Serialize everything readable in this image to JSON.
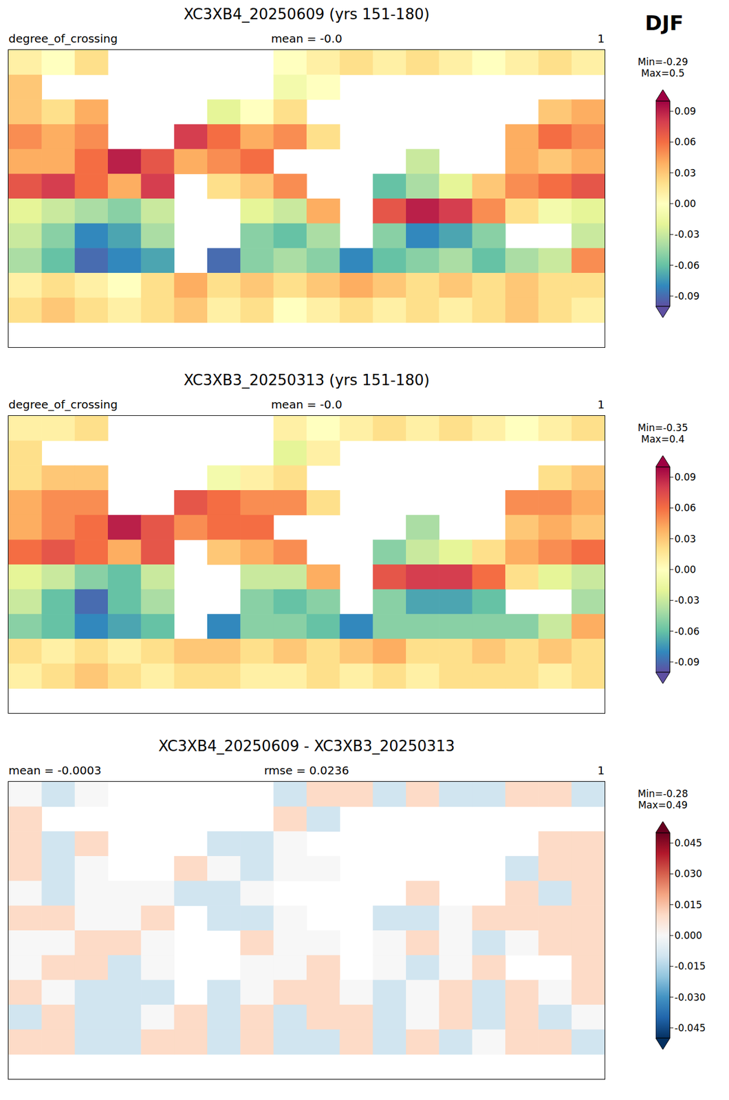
{
  "figure_label": "DJF",
  "chart_data": [
    {
      "type": "heatmap",
      "title": "XC3XB4_20250609 (yrs 151-180)",
      "subtitle_left": "degree_of_crossing",
      "subtitle_center": "mean = -0.0",
      "subtitle_right": "1",
      "xlim": [
        -180,
        180
      ],
      "ylim": [
        -90,
        90
      ],
      "xticks": [],
      "yticks": [],
      "tick_labels": false,
      "color": "Spectral_r",
      "lons": [
        -170,
        -150,
        -130,
        -110,
        -90,
        -70,
        -50,
        -30,
        -10,
        10,
        30,
        50,
        70,
        90,
        110,
        130,
        150,
        170
      ],
      "lats": [
        82.5,
        67.5,
        52.5,
        37.5,
        22.5,
        7.5,
        -7.5,
        -22.5,
        -37.5,
        -52.5,
        -67.5,
        -82.5
      ],
      "cells": [
        [
          0.01,
          0.0,
          0.02,
          null,
          null,
          null,
          null,
          null,
          0.0,
          0.01,
          0.02,
          0.01,
          0.02,
          0.01,
          0.0,
          0.01,
          0.02,
          0.01
        ],
        [
          0.03,
          null,
          null,
          null,
          null,
          null,
          null,
          null,
          -0.01,
          0.0,
          null,
          null,
          null,
          null,
          null,
          null,
          null,
          null
        ],
        [
          0.03,
          0.02,
          0.04,
          null,
          null,
          null,
          -0.02,
          0.0,
          0.02,
          null,
          null,
          null,
          null,
          null,
          null,
          null,
          0.03,
          0.04
        ],
        [
          0.05,
          0.04,
          0.05,
          null,
          null,
          0.08,
          0.06,
          0.04,
          0.05,
          0.02,
          null,
          null,
          null,
          null,
          null,
          0.04,
          0.06,
          0.05
        ],
        [
          0.04,
          0.04,
          0.06,
          0.09,
          0.07,
          0.04,
          0.05,
          0.06,
          null,
          null,
          null,
          null,
          -0.03,
          null,
          null,
          0.04,
          0.03,
          0.04
        ],
        [
          0.07,
          0.08,
          0.06,
          0.04,
          0.08,
          null,
          0.02,
          0.03,
          0.05,
          null,
          null,
          -0.06,
          -0.04,
          -0.02,
          0.03,
          0.05,
          0.06,
          0.07
        ],
        [
          -0.02,
          -0.03,
          -0.04,
          -0.05,
          -0.03,
          null,
          null,
          -0.02,
          -0.03,
          0.04,
          null,
          0.07,
          0.09,
          0.08,
          0.05,
          0.02,
          -0.01,
          -0.02
        ],
        [
          -0.03,
          -0.05,
          -0.08,
          -0.07,
          -0.04,
          null,
          null,
          -0.05,
          -0.06,
          -0.04,
          null,
          -0.05,
          -0.08,
          -0.07,
          -0.05,
          null,
          null,
          -0.03
        ],
        [
          -0.04,
          -0.06,
          -0.09,
          -0.08,
          -0.07,
          null,
          -0.09,
          -0.05,
          -0.04,
          -0.05,
          -0.08,
          -0.06,
          -0.05,
          -0.04,
          -0.06,
          -0.04,
          -0.03,
          0.05
        ],
        [
          0.01,
          0.02,
          0.01,
          0.0,
          0.02,
          0.04,
          0.02,
          0.03,
          0.02,
          0.03,
          0.04,
          0.03,
          0.02,
          0.03,
          0.02,
          0.03,
          0.02,
          0.02
        ],
        [
          0.02,
          0.03,
          0.02,
          0.01,
          0.02,
          0.03,
          0.01,
          0.02,
          0.0,
          0.01,
          0.02,
          0.01,
          0.02,
          0.01,
          0.02,
          0.03,
          0.02,
          0.01
        ],
        [
          null,
          null,
          null,
          null,
          null,
          null,
          null,
          null,
          null,
          null,
          null,
          null,
          null,
          null,
          null,
          null,
          null,
          null
        ]
      ],
      "colorbar": {
        "range": [
          -0.1,
          0.1
        ],
        "ticks": [
          -0.09,
          -0.06,
          -0.03,
          {
            "value": 0,
            "label": "0.00"
          },
          0.03,
          0.06,
          0.09
        ],
        "min_label": "Min=-0.29",
        "max_label": "Max=0.5"
      }
    },
    {
      "type": "heatmap",
      "title": "XC3XB3_20250313 (yrs 151-180)",
      "subtitle_left": "degree_of_crossing",
      "subtitle_center": "mean = -0.0",
      "subtitle_right": "1",
      "xlim": [
        -180,
        180
      ],
      "ylim": [
        -90,
        90
      ],
      "xticks": [],
      "yticks": [],
      "tick_labels": false,
      "color": "Spectral_r",
      "lons": [
        -170,
        -150,
        -130,
        -110,
        -90,
        -70,
        -50,
        -30,
        -10,
        10,
        30,
        50,
        70,
        90,
        110,
        130,
        150,
        170
      ],
      "lats": [
        82.5,
        67.5,
        52.5,
        37.5,
        22.5,
        7.5,
        -7.5,
        -22.5,
        -37.5,
        -52.5,
        -67.5,
        -82.5
      ],
      "cells": [
        [
          0.01,
          0.01,
          0.02,
          null,
          null,
          null,
          null,
          null,
          0.01,
          0.0,
          0.01,
          0.02,
          0.01,
          0.02,
          0.01,
          0.0,
          0.01,
          0.02
        ],
        [
          0.02,
          null,
          null,
          null,
          null,
          null,
          null,
          null,
          -0.02,
          0.01,
          null,
          null,
          null,
          null,
          null,
          null,
          null,
          null
        ],
        [
          0.02,
          0.03,
          0.03,
          null,
          null,
          null,
          -0.01,
          0.01,
          0.02,
          null,
          null,
          null,
          null,
          null,
          null,
          null,
          0.02,
          0.03
        ],
        [
          0.04,
          0.05,
          0.05,
          null,
          null,
          0.07,
          0.06,
          0.05,
          0.05,
          0.02,
          null,
          null,
          null,
          null,
          null,
          0.05,
          0.05,
          0.04
        ],
        [
          0.04,
          0.05,
          0.06,
          0.09,
          0.07,
          0.05,
          0.06,
          0.06,
          null,
          null,
          null,
          null,
          -0.04,
          null,
          null,
          0.03,
          0.04,
          0.03
        ],
        [
          0.06,
          0.07,
          0.06,
          0.04,
          0.07,
          null,
          0.03,
          0.04,
          0.05,
          null,
          null,
          -0.05,
          -0.03,
          -0.02,
          0.02,
          0.04,
          0.05,
          0.06
        ],
        [
          -0.02,
          -0.03,
          -0.05,
          -0.06,
          -0.03,
          null,
          null,
          -0.03,
          -0.03,
          0.04,
          null,
          0.07,
          0.08,
          0.08,
          0.06,
          0.02,
          -0.02,
          -0.03
        ],
        [
          -0.03,
          -0.06,
          -0.09,
          -0.06,
          -0.04,
          null,
          null,
          -0.05,
          -0.06,
          -0.05,
          null,
          -0.05,
          -0.07,
          -0.07,
          -0.06,
          null,
          null,
          -0.04
        ],
        [
          -0.05,
          -0.06,
          -0.08,
          -0.07,
          -0.06,
          null,
          -0.08,
          -0.05,
          -0.05,
          -0.06,
          -0.08,
          -0.05,
          -0.05,
          -0.05,
          -0.05,
          -0.05,
          -0.03,
          0.04
        ],
        [
          0.02,
          0.01,
          0.02,
          0.01,
          0.02,
          0.03,
          0.03,
          0.02,
          0.03,
          0.02,
          0.03,
          0.04,
          0.02,
          0.02,
          0.03,
          0.02,
          0.03,
          0.02
        ],
        [
          0.01,
          0.02,
          0.03,
          0.02,
          0.01,
          0.02,
          0.02,
          0.01,
          0.01,
          0.02,
          0.01,
          0.02,
          0.01,
          0.02,
          0.02,
          0.02,
          0.01,
          0.02
        ],
        [
          null,
          null,
          null,
          null,
          null,
          null,
          null,
          null,
          null,
          null,
          null,
          null,
          null,
          null,
          null,
          null,
          null,
          null
        ]
      ],
      "colorbar": {
        "range": [
          -0.1,
          0.1
        ],
        "ticks": [
          -0.09,
          -0.06,
          -0.03,
          {
            "value": 0,
            "label": "0.00"
          },
          0.03,
          0.06,
          0.09
        ],
        "min_label": "Min=-0.35",
        "max_label": "Max=0.4"
      }
    },
    {
      "type": "heatmap",
      "title": "XC3XB4_20250609 - XC3XB3_20250313",
      "subtitle_left": "mean = -0.0003",
      "subtitle_center": "rmse = 0.0236",
      "subtitle_right": "1",
      "xlim": [
        -180,
        180
      ],
      "ylim": [
        -90,
        90
      ],
      "xticks": [],
      "yticks": [],
      "tick_labels": false,
      "color": "RdBu_r",
      "lons": [
        -170,
        -150,
        -130,
        -110,
        -90,
        -70,
        -50,
        -30,
        -10,
        10,
        30,
        50,
        70,
        90,
        110,
        130,
        150,
        170
      ],
      "lats": [
        82.5,
        67.5,
        52.5,
        37.5,
        22.5,
        7.5,
        -7.5,
        -22.5,
        -37.5,
        -52.5,
        -67.5,
        -82.5
      ],
      "cells": [
        [
          0.0,
          -0.01,
          0.0,
          null,
          null,
          null,
          null,
          null,
          -0.01,
          0.01,
          0.01,
          -0.01,
          0.01,
          -0.01,
          -0.01,
          0.01,
          0.01,
          -0.01
        ],
        [
          0.01,
          null,
          null,
          null,
          null,
          null,
          null,
          null,
          0.01,
          -0.01,
          null,
          null,
          null,
          null,
          null,
          null,
          null,
          null
        ],
        [
          0.01,
          -0.01,
          0.01,
          null,
          null,
          null,
          -0.01,
          -0.01,
          0.0,
          null,
          null,
          null,
          null,
          null,
          null,
          null,
          0.01,
          0.01
        ],
        [
          0.01,
          -0.01,
          0.0,
          null,
          null,
          0.01,
          0.0,
          -0.01,
          0.0,
          0.0,
          null,
          null,
          null,
          null,
          null,
          -0.01,
          0.01,
          0.01
        ],
        [
          0.0,
          -0.01,
          0.0,
          0.0,
          0.0,
          -0.01,
          -0.01,
          0.0,
          null,
          null,
          null,
          null,
          0.01,
          null,
          null,
          0.01,
          -0.01,
          0.01
        ],
        [
          0.01,
          0.01,
          0.0,
          0.0,
          0.01,
          null,
          -0.01,
          -0.01,
          0.0,
          null,
          null,
          -0.01,
          -0.01,
          0.0,
          0.01,
          0.01,
          0.01,
          0.01
        ],
        [
          0.0,
          0.0,
          0.01,
          0.01,
          0.0,
          null,
          null,
          0.01,
          0.0,
          0.0,
          null,
          0.0,
          0.01,
          0.0,
          -0.01,
          0.0,
          0.01,
          0.01
        ],
        [
          0.0,
          0.01,
          0.01,
          -0.01,
          0.0,
          null,
          null,
          0.0,
          0.0,
          0.01,
          null,
          0.0,
          -0.01,
          0.0,
          0.01,
          null,
          null,
          0.01
        ],
        [
          0.01,
          0.0,
          -0.01,
          -0.01,
          -0.01,
          null,
          -0.01,
          0.0,
          0.01,
          0.01,
          0.0,
          -0.01,
          0.0,
          0.01,
          -0.01,
          0.01,
          0.0,
          0.01
        ],
        [
          -0.01,
          0.01,
          -0.01,
          -0.01,
          0.0,
          0.01,
          -0.01,
          0.01,
          -0.01,
          0.01,
          0.01,
          -0.01,
          0.0,
          0.01,
          -0.01,
          0.01,
          -0.01,
          0.0
        ],
        [
          0.01,
          0.01,
          -0.01,
          -0.01,
          0.01,
          0.01,
          -0.01,
          0.01,
          -0.01,
          -0.01,
          0.01,
          -0.01,
          0.01,
          -0.01,
          0.0,
          0.01,
          0.01,
          -0.01
        ],
        [
          null,
          null,
          null,
          null,
          null,
          null,
          null,
          null,
          null,
          null,
          null,
          null,
          null,
          null,
          null,
          null,
          null,
          null
        ]
      ],
      "colorbar": {
        "range": [
          -0.05,
          0.05
        ],
        "ticks": [
          -0.045,
          {
            "value": -0.03,
            "label": "-0.030"
          },
          -0.015,
          {
            "value": 0,
            "label": "0.000"
          },
          0.015,
          {
            "value": 0.03,
            "label": "0.030"
          },
          0.045
        ],
        "min_label": "Min=-0.28",
        "max_label": "Max=0.49"
      }
    }
  ]
}
